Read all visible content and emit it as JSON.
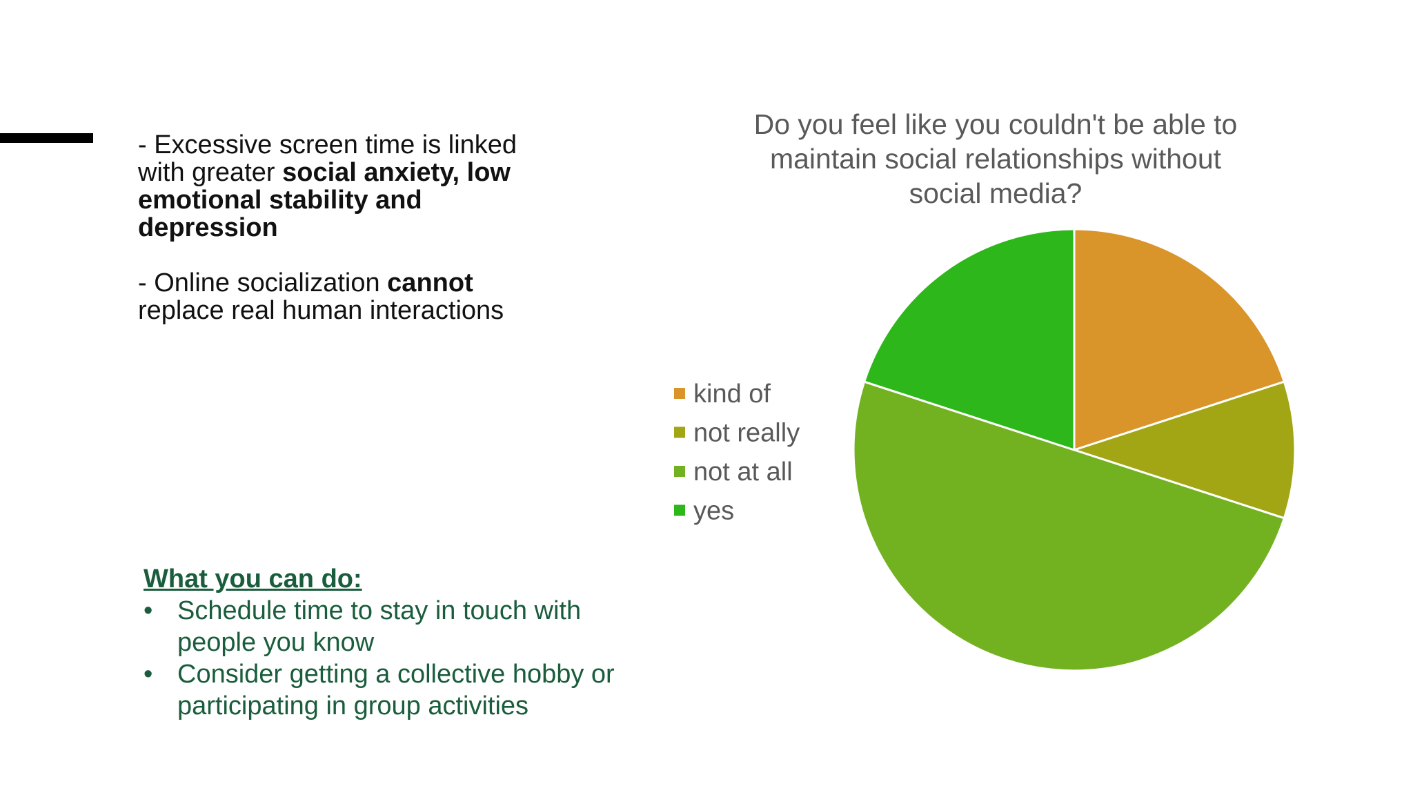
{
  "slide": {
    "left_text": {
      "p1": {
        "prefix": "- Excessive screen time is linked with greater ",
        "bold": "social anxiety, low emotional stability and depression"
      },
      "p2": {
        "prefix": "- Online socialization ",
        "bold": "cannot",
        "suffix": " replace real human interactions"
      }
    },
    "todo": {
      "heading": "What you can do:",
      "bullet": "•",
      "items": [
        "Schedule time to stay in touch with people you know",
        "Consider getting a collective hobby or participating in group activities"
      ]
    }
  },
  "chart_data": {
    "type": "pie",
    "title_lines": [
      "Do you feel like you couldn't be able to",
      "maintain social relationships without",
      "social media?"
    ],
    "legend_position": "left",
    "slices": [
      {
        "label": "kind of",
        "value": 20,
        "color": "#d9942a"
      },
      {
        "label": "not really",
        "value": 10,
        "color": "#a2a615"
      },
      {
        "label": "not at all",
        "value": 50,
        "color": "#72b221"
      },
      {
        "label": "yes",
        "value": 20,
        "color": "#2db71a"
      }
    ]
  }
}
